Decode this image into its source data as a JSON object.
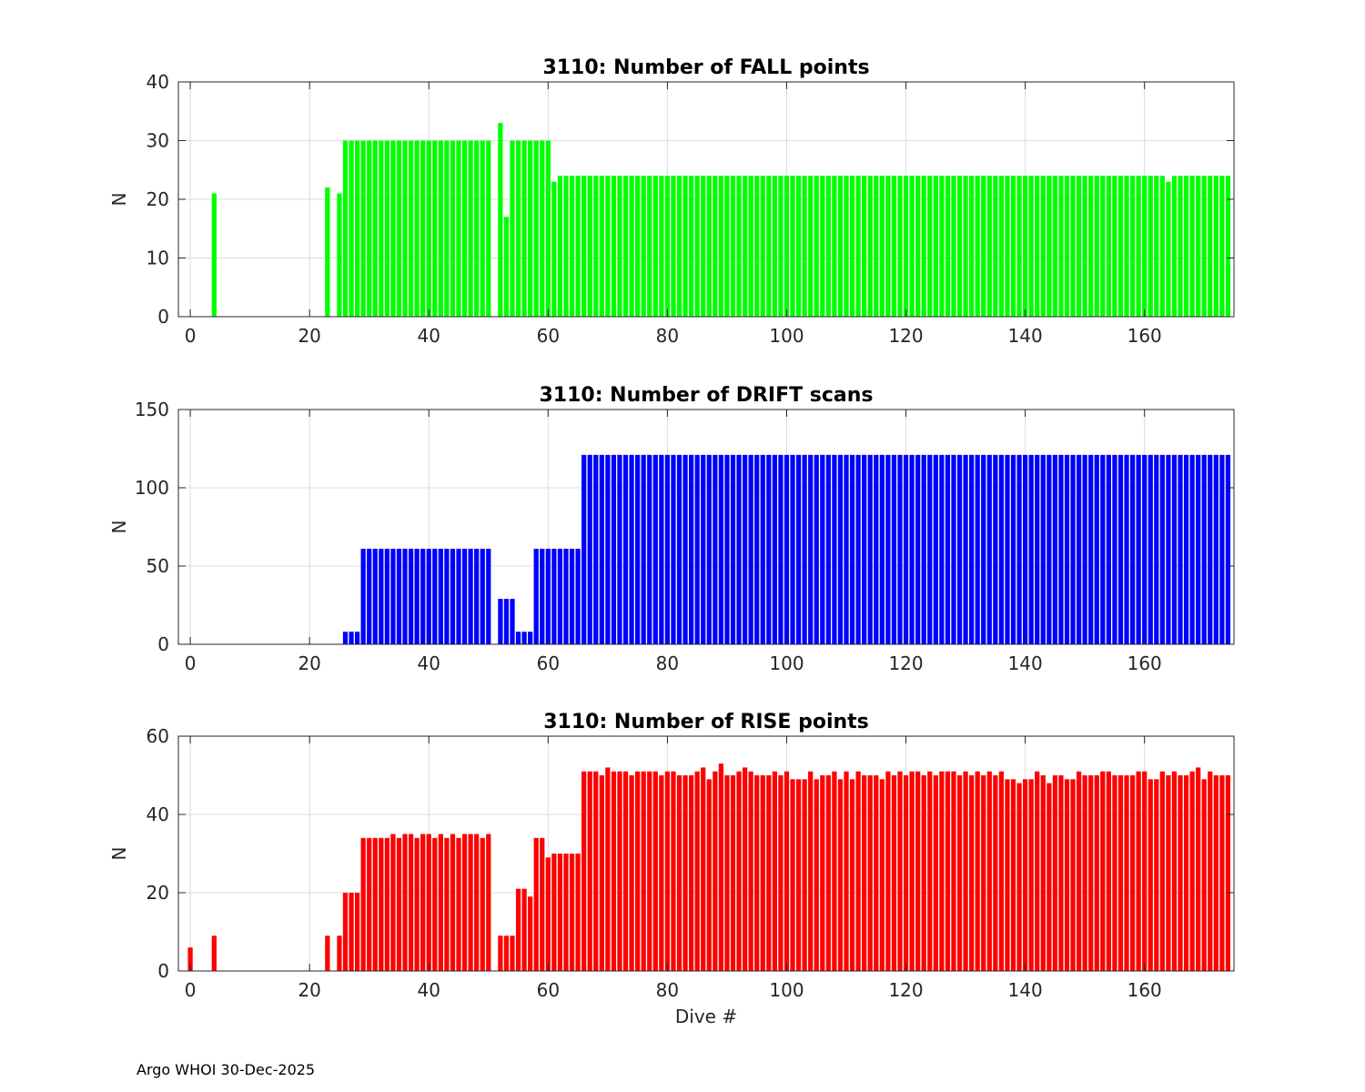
{
  "footer": "Argo WHOI 30-Dec-2025",
  "chart_data": [
    {
      "type": "bar",
      "title": "3110: Number of FALL points",
      "ylabel": "N",
      "xlabel": "",
      "color": "#00ff00",
      "xlim": [
        -2,
        175
      ],
      "ylim": [
        0,
        40
      ],
      "xticks": [
        0,
        20,
        40,
        60,
        80,
        100,
        120,
        140,
        160
      ],
      "yticks": [
        0,
        10,
        20,
        30,
        40
      ],
      "grid": true,
      "x": [
        4,
        23,
        25,
        26,
        27,
        28,
        29,
        30,
        31,
        32,
        33,
        34,
        35,
        36,
        37,
        38,
        39,
        40,
        41,
        42,
        43,
        44,
        45,
        46,
        47,
        48,
        49,
        50,
        52,
        53,
        54,
        55,
        56,
        57,
        58,
        59,
        60,
        61,
        62,
        63,
        64,
        65,
        66,
        67,
        68,
        69,
        70,
        71,
        72,
        73,
        74,
        75,
        76,
        77,
        78,
        79,
        80,
        81,
        82,
        83,
        84,
        85,
        86,
        87,
        88,
        89,
        90,
        91,
        92,
        93,
        94,
        95,
        96,
        97,
        98,
        99,
        100,
        101,
        102,
        103,
        104,
        105,
        106,
        107,
        108,
        109,
        110,
        111,
        112,
        113,
        114,
        115,
        116,
        117,
        118,
        119,
        120,
        121,
        122,
        123,
        124,
        125,
        126,
        127,
        128,
        129,
        130,
        131,
        132,
        133,
        134,
        135,
        136,
        137,
        138,
        139,
        140,
        141,
        142,
        143,
        144,
        145,
        146,
        147,
        148,
        149,
        150,
        151,
        152,
        153,
        154,
        155,
        156,
        157,
        158,
        159,
        160,
        161,
        162,
        163,
        164,
        165,
        166,
        167,
        168,
        169,
        170,
        171,
        172,
        173,
        174
      ],
      "values": [
        21,
        22,
        21,
        30,
        30,
        30,
        30,
        30,
        30,
        30,
        30,
        30,
        30,
        30,
        30,
        30,
        30,
        30,
        30,
        30,
        30,
        30,
        30,
        30,
        30,
        30,
        30,
        30,
        33,
        17,
        30,
        30,
        30,
        30,
        30,
        30,
        30,
        23,
        24,
        24,
        24,
        24,
        24,
        24,
        24,
        24,
        24,
        24,
        24,
        24,
        24,
        24,
        24,
        24,
        24,
        24,
        24,
        24,
        24,
        24,
        24,
        24,
        24,
        24,
        24,
        24,
        24,
        24,
        24,
        24,
        24,
        24,
        24,
        24,
        24,
        24,
        24,
        24,
        24,
        24,
        24,
        24,
        24,
        24,
        24,
        24,
        24,
        24,
        24,
        24,
        24,
        24,
        24,
        24,
        24,
        24,
        24,
        24,
        24,
        24,
        24,
        24,
        24,
        24,
        24,
        24,
        24,
        24,
        24,
        24,
        24,
        24,
        24,
        24,
        24,
        24,
        24,
        24,
        24,
        24,
        24,
        24,
        24,
        24,
        24,
        24,
        24,
        24,
        24,
        24,
        24,
        24,
        24,
        24,
        24,
        24,
        24,
        24,
        24,
        24,
        23,
        24,
        24,
        24,
        24,
        24,
        24,
        24,
        24,
        24,
        24
      ]
    },
    {
      "type": "bar",
      "title": "3110: Number of DRIFT scans",
      "ylabel": "N",
      "xlabel": "",
      "color": "#0000ff",
      "xlim": [
        -2,
        175
      ],
      "ylim": [
        0,
        150
      ],
      "xticks": [
        0,
        20,
        40,
        60,
        80,
        100,
        120,
        140,
        160
      ],
      "yticks": [
        0,
        50,
        100,
        150
      ],
      "grid": true,
      "x": [
        26,
        27,
        28,
        29,
        30,
        31,
        32,
        33,
        34,
        35,
        36,
        37,
        38,
        39,
        40,
        41,
        42,
        43,
        44,
        45,
        46,
        47,
        48,
        49,
        50,
        52,
        53,
        54,
        55,
        56,
        57,
        58,
        59,
        60,
        61,
        62,
        63,
        64,
        65,
        66,
        67,
        68,
        69,
        70,
        71,
        72,
        73,
        74,
        75,
        76,
        77,
        78,
        79,
        80,
        81,
        82,
        83,
        84,
        85,
        86,
        87,
        88,
        89,
        90,
        91,
        92,
        93,
        94,
        95,
        96,
        97,
        98,
        99,
        100,
        101,
        102,
        103,
        104,
        105,
        106,
        107,
        108,
        109,
        110,
        111,
        112,
        113,
        114,
        115,
        116,
        117,
        118,
        119,
        120,
        121,
        122,
        123,
        124,
        125,
        126,
        127,
        128,
        129,
        130,
        131,
        132,
        133,
        134,
        135,
        136,
        137,
        138,
        139,
        140,
        141,
        142,
        143,
        144,
        145,
        146,
        147,
        148,
        149,
        150,
        151,
        152,
        153,
        154,
        155,
        156,
        157,
        158,
        159,
        160,
        161,
        162,
        163,
        164,
        165,
        166,
        167,
        168,
        169,
        170,
        171,
        172,
        173,
        174
      ],
      "values": [
        8,
        8,
        8,
        61,
        61,
        61,
        61,
        61,
        61,
        61,
        61,
        61,
        61,
        61,
        61,
        61,
        61,
        61,
        61,
        61,
        61,
        61,
        61,
        61,
        61,
        29,
        29,
        29,
        8,
        8,
        8,
        61,
        61,
        61,
        61,
        61,
        61,
        61,
        61,
        121,
        121,
        121,
        121,
        121,
        121,
        121,
        121,
        121,
        121,
        121,
        121,
        121,
        121,
        121,
        121,
        121,
        121,
        121,
        121,
        121,
        121,
        121,
        121,
        121,
        121,
        121,
        121,
        121,
        121,
        121,
        121,
        121,
        121,
        121,
        121,
        121,
        121,
        121,
        121,
        121,
        121,
        121,
        121,
        121,
        121,
        121,
        121,
        121,
        121,
        121,
        121,
        121,
        121,
        121,
        121,
        121,
        121,
        121,
        121,
        121,
        121,
        121,
        121,
        121,
        121,
        121,
        121,
        121,
        121,
        121,
        121,
        121,
        121,
        121,
        121,
        121,
        121,
        121,
        121,
        121,
        121,
        121,
        121,
        121,
        121,
        121,
        121,
        121,
        121,
        121,
        121,
        121,
        121,
        121,
        121,
        121,
        121,
        121,
        121,
        121,
        121,
        121,
        121,
        121,
        121,
        121,
        121,
        121
      ]
    },
    {
      "type": "bar",
      "title": "3110: Number of RISE points",
      "ylabel": "N",
      "xlabel": "Dive #",
      "color": "#ff0000",
      "xlim": [
        -2,
        175
      ],
      "ylim": [
        0,
        60
      ],
      "xticks": [
        0,
        20,
        40,
        60,
        80,
        100,
        120,
        140,
        160
      ],
      "yticks": [
        0,
        20,
        40,
        60
      ],
      "grid": true,
      "x": [
        0,
        4,
        23,
        25,
        26,
        27,
        28,
        29,
        30,
        31,
        32,
        33,
        34,
        35,
        36,
        37,
        38,
        39,
        40,
        41,
        42,
        43,
        44,
        45,
        46,
        47,
        48,
        49,
        50,
        52,
        53,
        54,
        55,
        56,
        57,
        58,
        59,
        60,
        61,
        62,
        63,
        64,
        65,
        66,
        67,
        68,
        69,
        70,
        71,
        72,
        73,
        74,
        75,
        76,
        77,
        78,
        79,
        80,
        81,
        82,
        83,
        84,
        85,
        86,
        87,
        88,
        89,
        90,
        91,
        92,
        93,
        94,
        95,
        96,
        97,
        98,
        99,
        100,
        101,
        102,
        103,
        104,
        105,
        106,
        107,
        108,
        109,
        110,
        111,
        112,
        113,
        114,
        115,
        116,
        117,
        118,
        119,
        120,
        121,
        122,
        123,
        124,
        125,
        126,
        127,
        128,
        129,
        130,
        131,
        132,
        133,
        134,
        135,
        136,
        137,
        138,
        139,
        140,
        141,
        142,
        143,
        144,
        145,
        146,
        147,
        148,
        149,
        150,
        151,
        152,
        153,
        154,
        155,
        156,
        157,
        158,
        159,
        160,
        161,
        162,
        163,
        164,
        165,
        166,
        167,
        168,
        169,
        170,
        171,
        172,
        173,
        174
      ],
      "values": [
        6,
        9,
        9,
        9,
        20,
        20,
        20,
        34,
        34,
        34,
        34,
        34,
        35,
        34,
        35,
        35,
        34,
        35,
        35,
        34,
        35,
        34,
        35,
        34,
        35,
        35,
        35,
        34,
        35,
        9,
        9,
        9,
        21,
        21,
        19,
        34,
        34,
        29,
        30,
        30,
        30,
        30,
        30,
        51,
        51,
        51,
        50,
        52,
        51,
        51,
        51,
        50,
        51,
        51,
        51,
        51,
        50,
        51,
        51,
        50,
        50,
        50,
        51,
        52,
        49,
        51,
        53,
        50,
        50,
        51,
        52,
        51,
        50,
        50,
        50,
        51,
        50,
        51,
        49,
        49,
        49,
        51,
        49,
        50,
        50,
        51,
        49,
        51,
        49,
        51,
        50,
        50,
        50,
        49,
        51,
        50,
        51,
        50,
        51,
        51,
        50,
        51,
        50,
        51,
        51,
        51,
        50,
        51,
        50,
        51,
        50,
        51,
        50,
        51,
        49,
        49,
        48,
        49,
        49,
        51,
        50,
        48,
        50,
        50,
        49,
        49,
        51,
        50,
        50,
        50,
        51,
        51,
        50,
        50,
        50,
        50,
        51,
        51,
        49,
        49,
        51,
        50,
        51,
        50,
        50,
        51,
        52,
        49,
        51,
        50,
        50,
        50
      ]
    }
  ]
}
